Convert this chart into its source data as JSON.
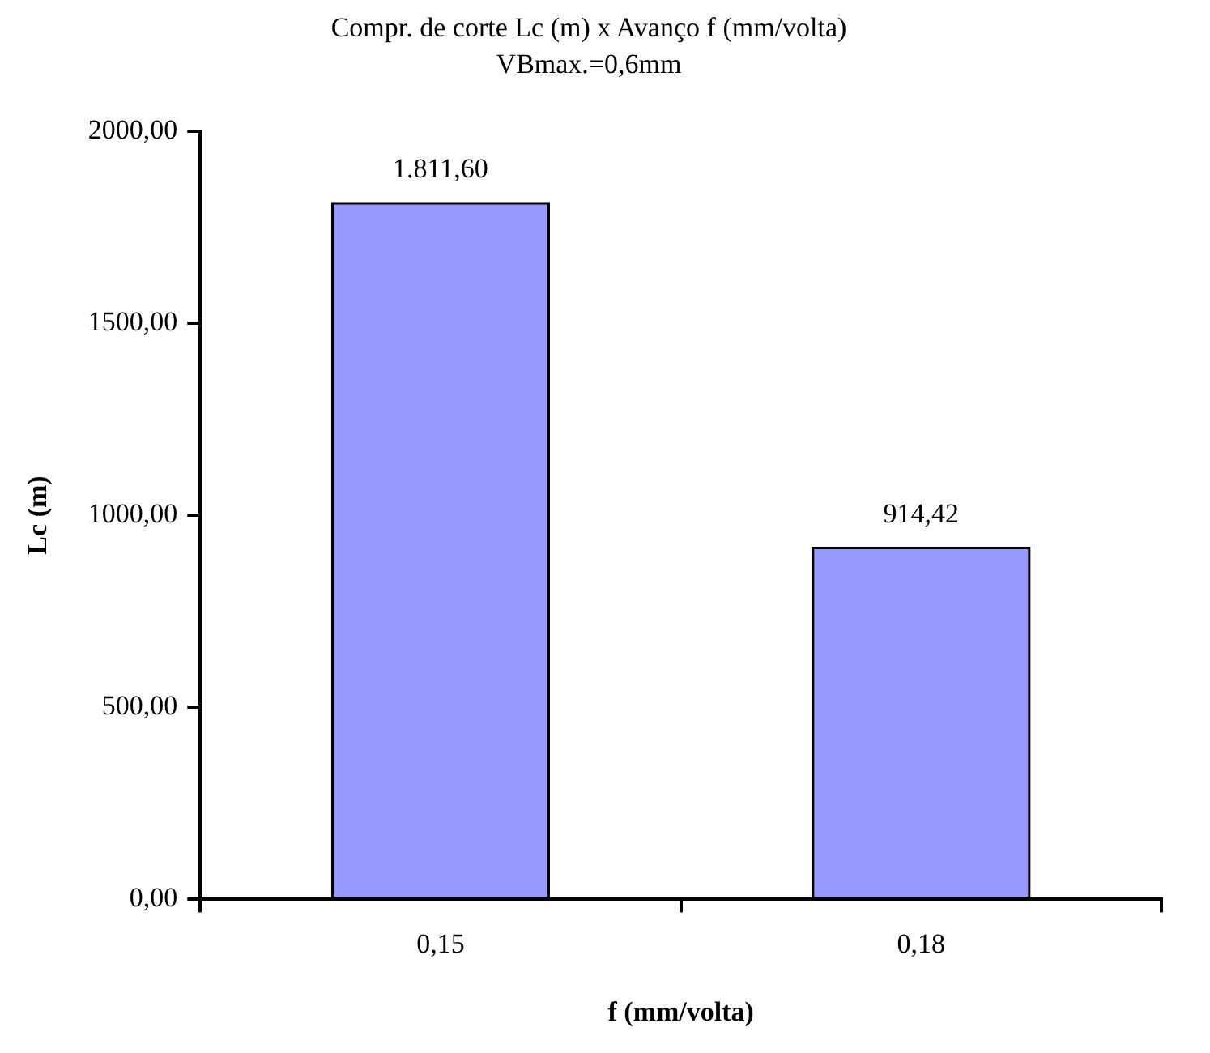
{
  "chart_data": {
    "type": "bar",
    "title": "Compr. de corte Lc (m) x Avanço f (mm/volta)",
    "subtitle": "VBmax.=0,6mm",
    "xlabel": "f (mm/volta)",
    "ylabel": "Lc (m)",
    "categories": [
      "0,15",
      "0,18"
    ],
    "values": [
      1811.6,
      914.42
    ],
    "value_labels": [
      "1.811,60",
      "914,42"
    ],
    "color": "#9999ff",
    "ylim": [
      0,
      2000
    ],
    "yticks": [
      {
        "value": 0,
        "label": "0,00"
      },
      {
        "value": 500,
        "label": "500,00"
      },
      {
        "value": 1000,
        "label": "1000,00"
      },
      {
        "value": 1500,
        "label": "1500,00"
      },
      {
        "value": 2000,
        "label": "2000,00"
      }
    ],
    "grid": false,
    "legend": false
  }
}
